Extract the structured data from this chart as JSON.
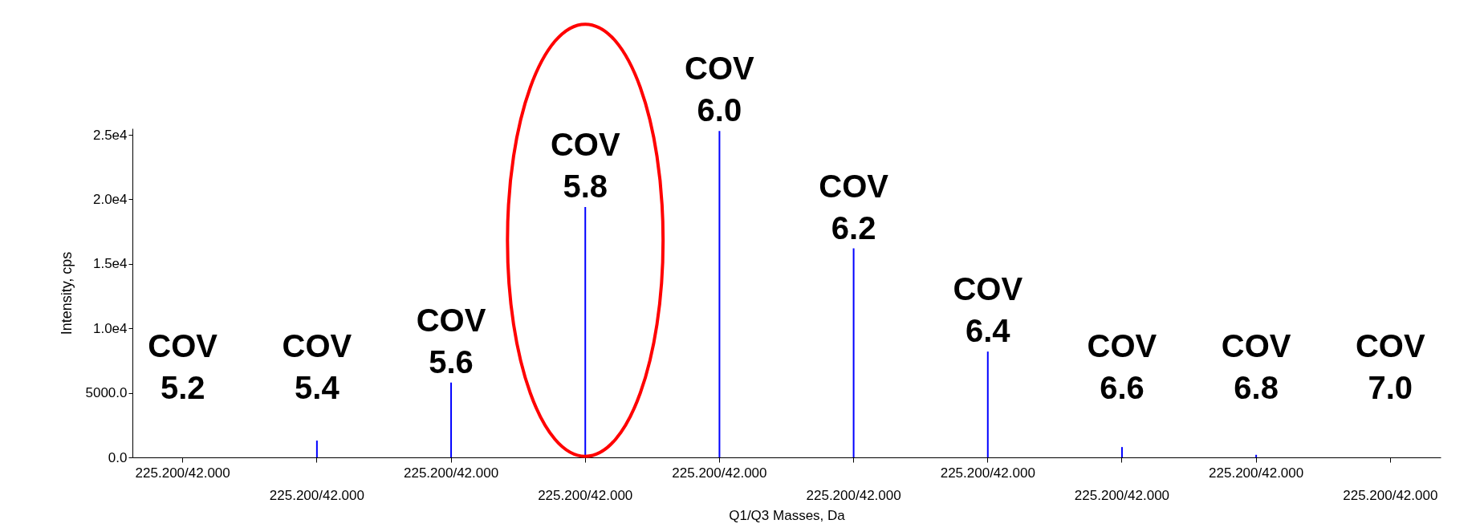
{
  "chart_data": {
    "type": "bar",
    "categories": [
      "225.200/42.000",
      "225.200/42.000",
      "225.200/42.000",
      "225.200/42.000",
      "225.200/42.000",
      "225.200/42.000",
      "225.200/42.000",
      "225.200/42.000",
      "225.200/42.000",
      "225.200/42.000"
    ],
    "values": [
      null,
      1300,
      5800,
      19400,
      25300,
      16200,
      8200,
      800,
      200,
      null
    ],
    "color": "#0000ff",
    "xlabel": "Q1/Q3 Masses, Da",
    "ylabel": "Intensity, cps",
    "ylim": [
      0,
      25500
    ],
    "yticks": [
      {
        "value": 0,
        "label": "0.0"
      },
      {
        "value": 5000,
        "label": "5000.0"
      },
      {
        "value": 10000,
        "label": "1.0e4"
      },
      {
        "value": 15000,
        "label": "1.5e4"
      },
      {
        "value": 20000,
        "label": "2.0e4"
      },
      {
        "value": 25000,
        "label": "2.5e4"
      }
    ],
    "annotations": [
      "COV 5.2",
      "COV 5.4",
      "COV 5.6",
      "COV 5.8",
      "COV 6.0",
      "COV 6.2",
      "COV 6.4",
      "COV 6.6",
      "COV 6.8",
      "COV 7.0"
    ],
    "grid": false
  }
}
